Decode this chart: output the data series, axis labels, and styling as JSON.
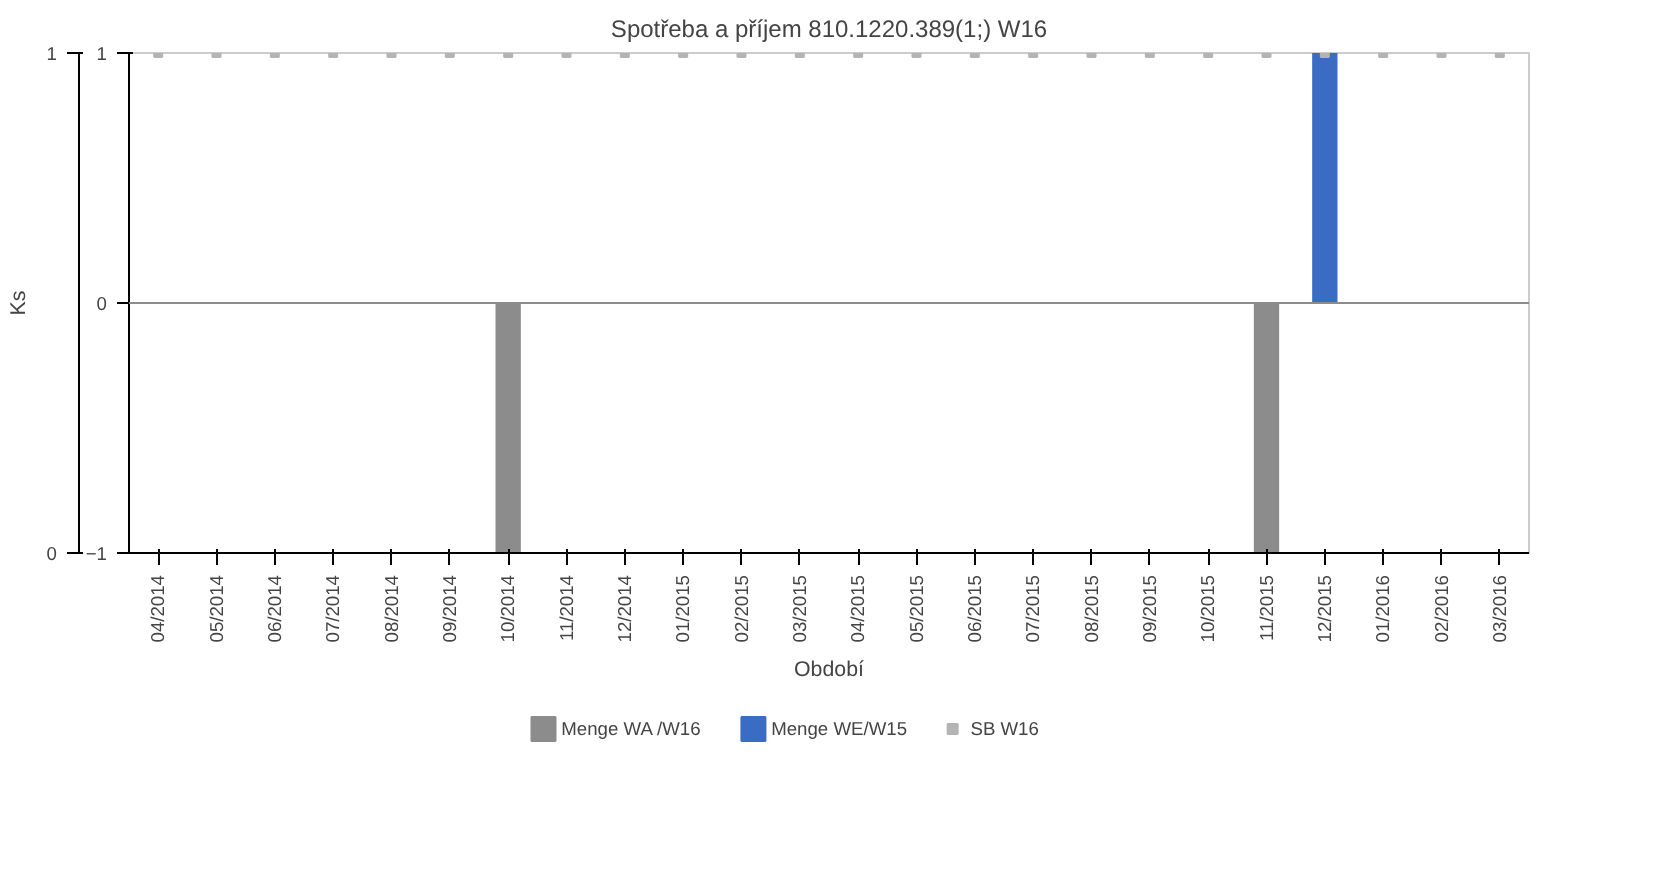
{
  "chart_data": {
    "type": "bar",
    "title": "Spotřeba a příjem 810.1220.389(1;) W16",
    "xlabel": "Období",
    "y2label": "Ks",
    "categories": [
      "04/2014",
      "05/2014",
      "06/2014",
      "07/2014",
      "08/2014",
      "09/2014",
      "10/2014",
      "11/2014",
      "12/2014",
      "01/2015",
      "02/2015",
      "03/2015",
      "04/2015",
      "05/2015",
      "06/2015",
      "07/2015",
      "08/2015",
      "09/2015",
      "10/2015",
      "11/2015",
      "12/2015",
      "01/2016",
      "02/2016",
      "03/2016"
    ],
    "series": [
      {
        "name": "Menge WA /W16",
        "color": "#8c8c8c",
        "values": [
          null,
          null,
          null,
          null,
          null,
          null,
          -1,
          null,
          null,
          null,
          null,
          null,
          null,
          null,
          null,
          null,
          null,
          null,
          null,
          -1,
          null,
          null,
          null,
          null
        ]
      },
      {
        "name": "Menge WE/W15",
        "color": "#3b6cc4",
        "values": [
          null,
          null,
          null,
          null,
          null,
          null,
          null,
          null,
          null,
          null,
          null,
          null,
          null,
          null,
          null,
          null,
          null,
          null,
          null,
          null,
          1,
          null,
          null,
          null
        ]
      },
      {
        "name": "SB W16",
        "type": "scatter",
        "marker": "square",
        "color": "#b4b4b4",
        "values": [
          1,
          1,
          1,
          1,
          1,
          1,
          1,
          1,
          1,
          1,
          1,
          1,
          1,
          1,
          1,
          1,
          1,
          1,
          1,
          1,
          1,
          1,
          1,
          1
        ]
      }
    ],
    "ylim": [
      -1,
      1
    ],
    "yticks": [
      -1,
      0,
      1
    ],
    "y2lim": [
      0,
      1
    ],
    "y2ticks": [
      0,
      1
    ],
    "ref_lines": [
      {
        "axis": "y",
        "value": 0,
        "color": "#8c8c8c"
      }
    ],
    "grid": false,
    "legend": "bottom"
  }
}
